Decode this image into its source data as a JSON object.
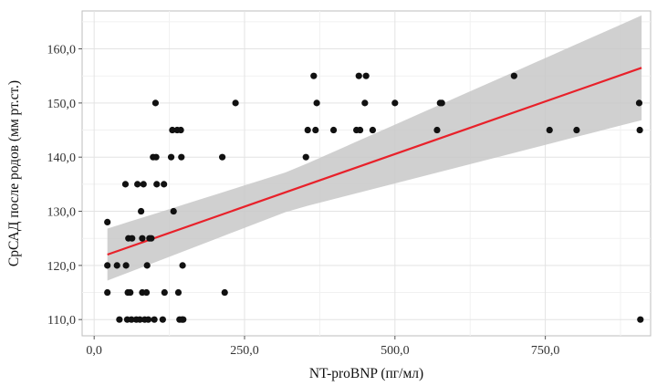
{
  "chart_data": {
    "type": "scatter",
    "title": "",
    "xlabel": "NT-proBNP (пг/мл)",
    "ylabel": "СрСАД после родов (мм рт.ст.)",
    "xlim": [
      -20,
      925
    ],
    "ylim": [
      107,
      167
    ],
    "x_ticks": [
      0,
      250,
      500,
      750
    ],
    "x_tick_labels": [
      "0,0",
      "250,0",
      "500,0",
      "750,0"
    ],
    "y_ticks": [
      110,
      120,
      130,
      140,
      150,
      160
    ],
    "y_tick_labels": [
      "110,0",
      "120,0",
      "130,0",
      "140,0",
      "150,0",
      "160,0"
    ],
    "grid": true,
    "points": [
      {
        "x": 22,
        "y": 128
      },
      {
        "x": 22,
        "y": 120
      },
      {
        "x": 22,
        "y": 115
      },
      {
        "x": 38,
        "y": 120
      },
      {
        "x": 42,
        "y": 110
      },
      {
        "x": 52,
        "y": 135
      },
      {
        "x": 53,
        "y": 120
      },
      {
        "x": 55,
        "y": 110
      },
      {
        "x": 56,
        "y": 115
      },
      {
        "x": 57,
        "y": 125
      },
      {
        "x": 60,
        "y": 115
      },
      {
        "x": 62,
        "y": 110
      },
      {
        "x": 63,
        "y": 125
      },
      {
        "x": 70,
        "y": 110
      },
      {
        "x": 72,
        "y": 135
      },
      {
        "x": 76,
        "y": 110
      },
      {
        "x": 78,
        "y": 130
      },
      {
        "x": 80,
        "y": 125
      },
      {
        "x": 80,
        "y": 115
      },
      {
        "x": 82,
        "y": 135
      },
      {
        "x": 84,
        "y": 110
      },
      {
        "x": 87,
        "y": 115
      },
      {
        "x": 88,
        "y": 120
      },
      {
        "x": 90,
        "y": 110
      },
      {
        "x": 92,
        "y": 125
      },
      {
        "x": 95,
        "y": 125
      },
      {
        "x": 98,
        "y": 140
      },
      {
        "x": 100,
        "y": 110
      },
      {
        "x": 102,
        "y": 150
      },
      {
        "x": 103,
        "y": 140
      },
      {
        "x": 104,
        "y": 135
      },
      {
        "x": 114,
        "y": 110
      },
      {
        "x": 116,
        "y": 135
      },
      {
        "x": 117,
        "y": 115
      },
      {
        "x": 128,
        "y": 140
      },
      {
        "x": 130,
        "y": 145
      },
      {
        "x": 132,
        "y": 130
      },
      {
        "x": 138,
        "y": 145
      },
      {
        "x": 140,
        "y": 115
      },
      {
        "x": 142,
        "y": 110
      },
      {
        "x": 144,
        "y": 145
      },
      {
        "x": 145,
        "y": 140
      },
      {
        "x": 146,
        "y": 110
      },
      {
        "x": 147,
        "y": 120
      },
      {
        "x": 148,
        "y": 110
      },
      {
        "x": 213,
        "y": 140
      },
      {
        "x": 217,
        "y": 115
      },
      {
        "x": 235,
        "y": 150
      },
      {
        "x": 352,
        "y": 140
      },
      {
        "x": 355,
        "y": 145
      },
      {
        "x": 365,
        "y": 155
      },
      {
        "x": 368,
        "y": 145
      },
      {
        "x": 370,
        "y": 150
      },
      {
        "x": 398,
        "y": 145
      },
      {
        "x": 436,
        "y": 145
      },
      {
        "x": 440,
        "y": 155
      },
      {
        "x": 442,
        "y": 145
      },
      {
        "x": 450,
        "y": 150
      },
      {
        "x": 452,
        "y": 155
      },
      {
        "x": 463,
        "y": 145
      },
      {
        "x": 500,
        "y": 150
      },
      {
        "x": 570,
        "y": 145
      },
      {
        "x": 575,
        "y": 150
      },
      {
        "x": 578,
        "y": 150
      },
      {
        "x": 698,
        "y": 155
      },
      {
        "x": 757,
        "y": 145
      },
      {
        "x": 802,
        "y": 145
      },
      {
        "x": 906,
        "y": 150
      },
      {
        "x": 907,
        "y": 145
      },
      {
        "x": 908,
        "y": 110
      }
    ],
    "regression": {
      "type": "linear",
      "color": "#e8212a",
      "x_range": [
        22,
        910
      ],
      "y_start": 122.0,
      "y_end": 156.5,
      "ci_lower": [
        119.5,
        148.5
      ],
      "ci_upper": [
        125.5,
        165.0
      ],
      "ci_color": "#c8c8c8"
    },
    "point_color": "#111111"
  }
}
